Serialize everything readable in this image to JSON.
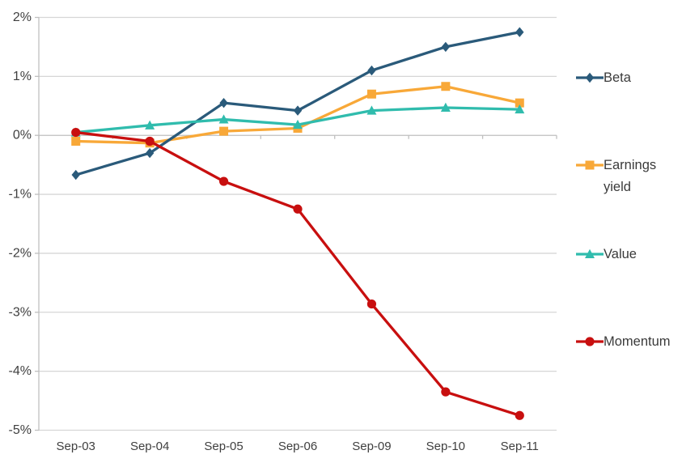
{
  "chart_data": {
    "type": "line",
    "title": "",
    "xlabel": "",
    "ylabel": "",
    "categories": [
      "Sep-03",
      "Sep-04",
      "Sep-05",
      "Sep-06",
      "Sep-09",
      "Sep-10",
      "Sep-11"
    ],
    "series": [
      {
        "name": "Beta",
        "key": "beta",
        "marker": "diamond",
        "color": "#2a5a7a",
        "values": [
          -0.67,
          -0.3,
          0.55,
          0.42,
          1.1,
          1.5,
          1.75
        ]
      },
      {
        "name": "Earnings yield",
        "key": "earnings-yield",
        "marker": "square",
        "color": "#f8a838",
        "values": [
          -0.1,
          -0.13,
          0.07,
          0.12,
          0.7,
          0.83,
          0.55
        ]
      },
      {
        "name": "Value",
        "key": "value",
        "marker": "triangle",
        "color": "#30bcad",
        "values": [
          0.05,
          0.17,
          0.27,
          0.18,
          0.42,
          0.47,
          0.44
        ]
      },
      {
        "name": "Momentum",
        "key": "momentum",
        "marker": "circle",
        "color": "#c80f0f",
        "values": [
          0.05,
          -0.1,
          -0.78,
          -1.25,
          -2.86,
          -4.35,
          -4.75
        ]
      }
    ],
    "draw_order": [
      "earnings-yield",
      "beta",
      "value",
      "momentum"
    ],
    "y_axis": {
      "min": -5,
      "max": 2,
      "step": 1,
      "ticks": [
        {
          "value": 2,
          "label": "2%"
        },
        {
          "value": 1,
          "label": "1%"
        },
        {
          "value": 0,
          "label": "0%"
        },
        {
          "value": -1,
          "label": "-1%"
        },
        {
          "value": -2,
          "label": "-2%"
        },
        {
          "value": -3,
          "label": "-3%"
        },
        {
          "value": -4,
          "label": "-4%"
        },
        {
          "value": -5,
          "label": "-5%"
        }
      ]
    },
    "x_axis": {
      "labels": [
        "Sep-03",
        "Sep-04",
        "Sep-05",
        "Sep-06",
        "Sep-09",
        "Sep-10",
        "Sep-11"
      ],
      "line_at_value": 0
    },
    "grid": true,
    "legend_position": "right",
    "colors": {
      "grid": "#d6d6d6",
      "axis": "#bfbfbf",
      "tick_text": "#3f3f3f",
      "background": "#ffffff"
    }
  }
}
